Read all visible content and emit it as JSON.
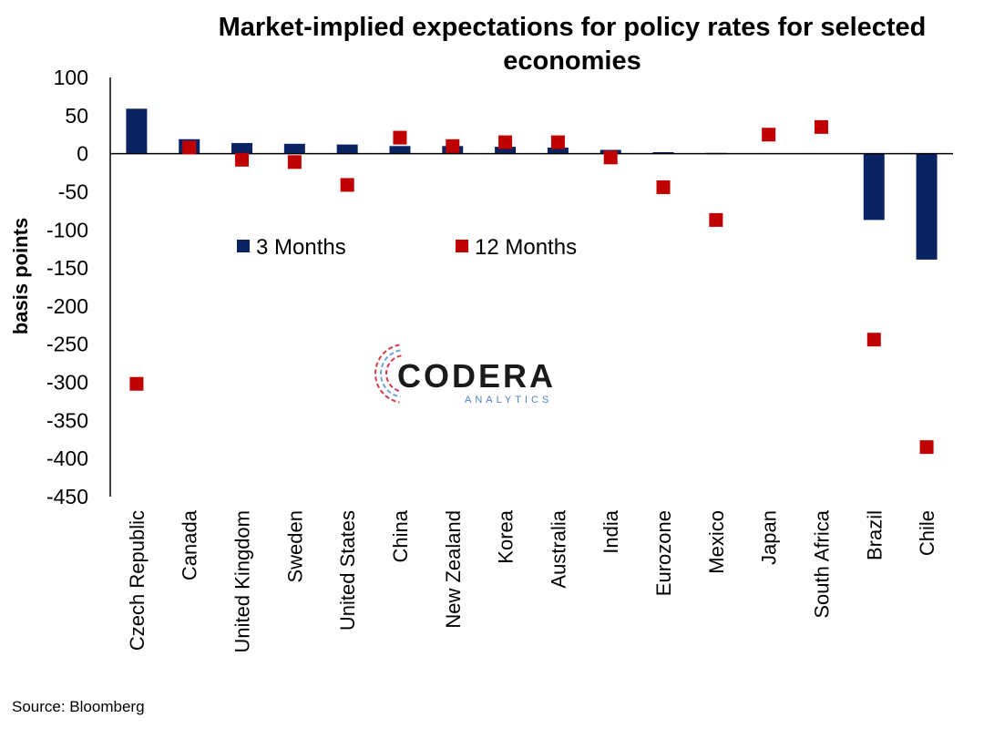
{
  "chart_data": {
    "type": "bar",
    "title": "Market-implied expectations for policy rates for selected economies",
    "title_lines": [
      "Market-implied expectations for policy rates for selected",
      "economies"
    ],
    "xlabel": "",
    "ylabel": "basis points",
    "ylim": [
      -450,
      100
    ],
    "yticks": [
      100,
      50,
      0,
      -50,
      -100,
      -150,
      -200,
      -250,
      -300,
      -350,
      -400,
      -450
    ],
    "grid": false,
    "legend_position": "upper-middle inside plot",
    "categories": [
      "Czech Republic",
      "Canada",
      "United Kingdom",
      "Sweden",
      "United States",
      "China",
      "New Zealand",
      "Korea",
      "Australia",
      "India",
      "Eurozone",
      "Mexico",
      "Japan",
      "South Africa",
      "Brazil",
      "Chile"
    ],
    "series": [
      {
        "name": "3 Months",
        "type": "bar",
        "color": "#0a2463",
        "values": [
          59,
          19,
          14,
          13,
          12,
          10,
          10,
          9,
          8,
          5,
          2,
          1,
          0,
          0,
          -87,
          -139
        ]
      },
      {
        "name": "12 Months",
        "type": "marker",
        "color": "#c00000",
        "values": [
          -302,
          8,
          -8,
          -11,
          -41,
          21,
          10,
          15,
          15,
          -5,
          -44,
          -87,
          25,
          35,
          -244,
          -385
        ]
      }
    ],
    "source": "Source: Bloomberg"
  },
  "logo": {
    "name": "CODERA",
    "tagline": "ANALYTICS",
    "colors": {
      "word": "#1a1a1a",
      "tagline": "#4f7fbf",
      "accent_red": "#d63b4a",
      "accent_blue": "#6fa3d8"
    }
  }
}
